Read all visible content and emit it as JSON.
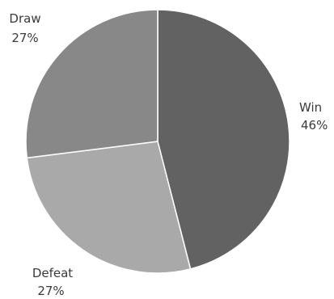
{
  "chart_data": {
    "type": "pie",
    "title": "",
    "categories": [
      "Win",
      "Defeat",
      "Draw"
    ],
    "values": [
      46,
      27,
      27
    ],
    "unit": "%",
    "colors": [
      "#626262",
      "#a9a9a9",
      "#888888"
    ],
    "label_text_color": "#3a3a3a",
    "legend": "none",
    "start": "12 o'clock",
    "direction": "clockwise",
    "data_labels": [
      {
        "name": "Win",
        "value": "46%"
      },
      {
        "name": "Defeat",
        "value": "27%"
      },
      {
        "name": "Draw",
        "value": "27%"
      }
    ]
  }
}
